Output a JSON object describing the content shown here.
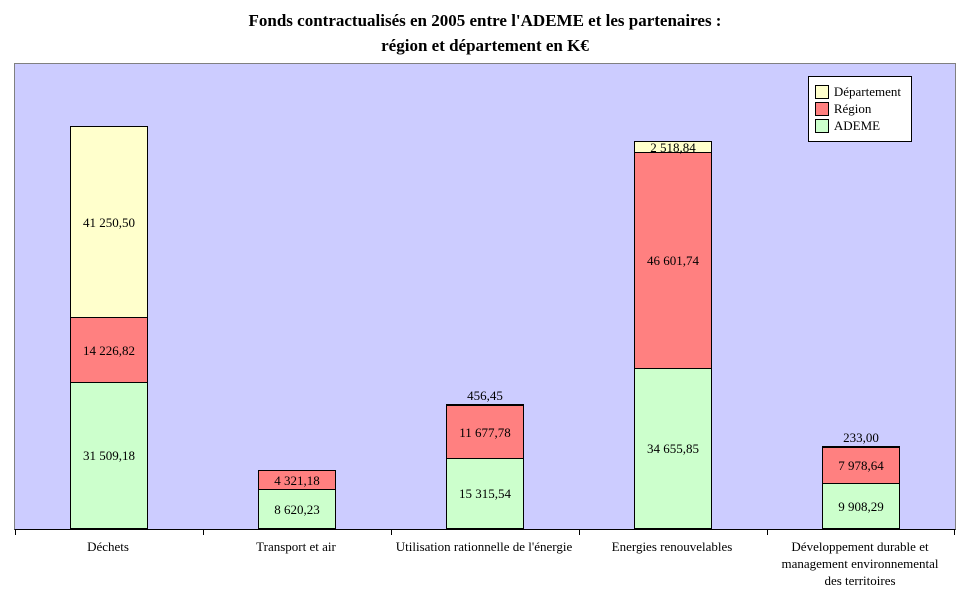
{
  "title": {
    "line1": "Fonds contractualisés en 2005 entre l'ADEME et les partenaires :",
    "line2": "région et département en K€"
  },
  "legend": [
    {
      "label": "Département",
      "color": "#FFFFCC"
    },
    {
      "label": "Région",
      "color": "#FF8080"
    },
    {
      "label": "ADEME",
      "color": "#CCFFCC"
    }
  ],
  "chart_data": {
    "type": "bar",
    "stacked": true,
    "title": "Fonds contractualisés en 2005 entre l'ADEME et les partenaires : région et département en K€",
    "categories": [
      "Déchets",
      "Transport et air",
      "Utilisation rationnelle de l'énergie",
      "Energies renouvelables",
      "Développement durable et\nmanagement environnemental\ndes territoires"
    ],
    "series": [
      {
        "name": "ADEME",
        "color": "#CCFFCC",
        "values": [
          31509.18,
          8620.23,
          15315.54,
          34655.85,
          9908.29
        ],
        "labels": [
          "31 509,18",
          "8 620,23",
          "15 315,54",
          "34 655,85",
          "9 908,29"
        ]
      },
      {
        "name": "Région",
        "color": "#FF8080",
        "values": [
          14226.82,
          4321.18,
          11677.78,
          46601.74,
          7978.64
        ],
        "labels": [
          "14 226,82",
          "4 321,18",
          "11 677,78",
          "46 601,74",
          "7 978,64"
        ]
      },
      {
        "name": "Département",
        "color": "#FFFFCC",
        "values": [
          41250.5,
          null,
          456.45,
          2518.84,
          233.0
        ],
        "labels": [
          "41 250,50",
          "",
          "456,45",
          "2 518,84",
          "233,00"
        ]
      }
    ],
    "xlabel": "",
    "ylabel": "",
    "ylim": [
      0,
      100000
    ],
    "grid": false,
    "legend_position": "top-right",
    "plot_background": "#CCCCFF"
  }
}
